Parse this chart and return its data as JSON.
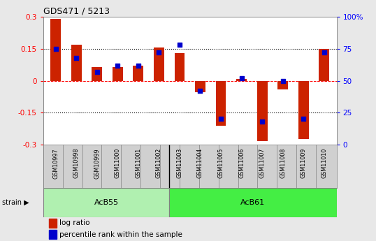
{
  "title": "GDS471 / 5213",
  "samples": [
    "GSM10997",
    "GSM10998",
    "GSM10999",
    "GSM11000",
    "GSM11001",
    "GSM11002",
    "GSM11003",
    "GSM11004",
    "GSM11005",
    "GSM11006",
    "GSM11007",
    "GSM11008",
    "GSM11009",
    "GSM11010"
  ],
  "log_ratio": [
    0.29,
    0.17,
    0.065,
    0.065,
    0.07,
    0.155,
    0.13,
    -0.055,
    -0.21,
    0.01,
    -0.285,
    -0.04,
    -0.275,
    0.15
  ],
  "percentile": [
    75,
    68,
    57,
    62,
    62,
    72,
    78,
    42,
    20,
    52,
    18,
    50,
    20,
    72
  ],
  "groups": [
    {
      "label": "AcB55",
      "start": 0,
      "end": 5,
      "color": "#b0f0b0"
    },
    {
      "label": "AcB61",
      "start": 6,
      "end": 13,
      "color": "#44ee44"
    }
  ],
  "group_split": 5.5,
  "ylim": [
    -0.3,
    0.3
  ],
  "y2lim": [
    0,
    100
  ],
  "yticks": [
    -0.3,
    -0.15,
    0,
    0.15,
    0.3
  ],
  "y2ticks": [
    0,
    25,
    50,
    75,
    100
  ],
  "hlines_dotted": [
    -0.15,
    0.15
  ],
  "hline_dashed": 0.0,
  "bar_color": "#cc2200",
  "dot_color": "#0000cc",
  "bg_color": "#e8e8e8",
  "plot_bg": "#ffffff",
  "label_bg": "#d0d0d0",
  "bar_width": 0.5,
  "dot_size": 25,
  "legend_items": [
    "log ratio",
    "percentile rank within the sample"
  ],
  "strain_label": "strain"
}
